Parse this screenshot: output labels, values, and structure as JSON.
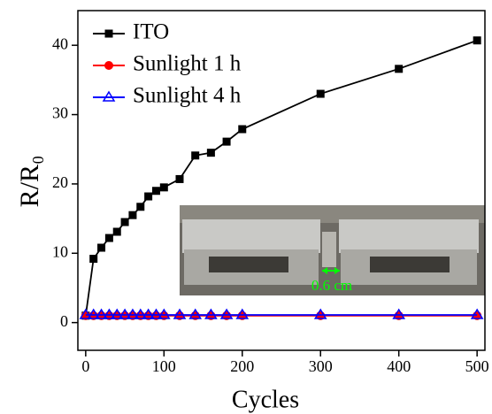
{
  "chart_data": {
    "type": "line",
    "x_label": "Cycles",
    "y_label": "R/R₀",
    "x": [
      0,
      10,
      20,
      30,
      40,
      50,
      60,
      70,
      80,
      90,
      100,
      120,
      140,
      160,
      180,
      200,
      300,
      400,
      500
    ],
    "series": [
      {
        "name": "ITO",
        "color": "#000000",
        "marker": "square",
        "values": [
          1,
          9.2,
          10.8,
          12.2,
          13.1,
          14.5,
          15.5,
          16.7,
          18.2,
          19.0,
          19.5,
          20.7,
          24.1,
          24.5,
          26.1,
          27.9,
          33.0,
          36.6,
          40.7
        ]
      },
      {
        "name": "Sunlight 1 h",
        "color": "#ff0000",
        "marker": "circle",
        "values": [
          1,
          1,
          1,
          1,
          1,
          1,
          1,
          1,
          1,
          1,
          1,
          1,
          1,
          1,
          1,
          1,
          1,
          1,
          1
        ]
      },
      {
        "name": "Sunlight 4 h",
        "color": "#0000ff",
        "marker": "triangle",
        "values": [
          1.1,
          1.1,
          1.1,
          1.1,
          1.1,
          1.1,
          1.1,
          1.1,
          1.1,
          1.1,
          1.1,
          1.1,
          1.1,
          1.1,
          1.1,
          1.1,
          1.1,
          1.1,
          1.1
        ]
      }
    ],
    "xlim": [
      -10,
      510
    ],
    "ylim": [
      -4,
      45
    ],
    "xticks": [
      0,
      100,
      200,
      300,
      400,
      500
    ],
    "yticks": [
      0,
      10,
      20,
      30,
      40
    ],
    "annotation": "0.6 cm",
    "legend": "upper left"
  }
}
